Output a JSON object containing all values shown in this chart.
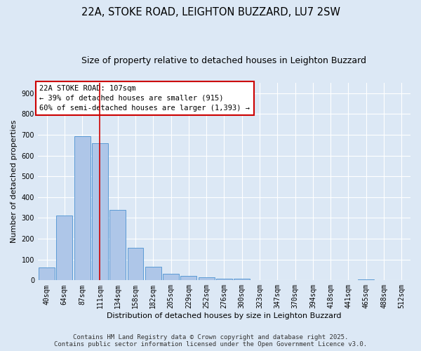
{
  "title": "22A, STOKE ROAD, LEIGHTON BUZZARD, LU7 2SW",
  "subtitle": "Size of property relative to detached houses in Leighton Buzzard",
  "xlabel": "Distribution of detached houses by size in Leighton Buzzard",
  "ylabel": "Number of detached properties",
  "categories": [
    "40sqm",
    "64sqm",
    "87sqm",
    "111sqm",
    "134sqm",
    "158sqm",
    "182sqm",
    "205sqm",
    "229sqm",
    "252sqm",
    "276sqm",
    "300sqm",
    "323sqm",
    "347sqm",
    "370sqm",
    "394sqm",
    "418sqm",
    "441sqm",
    "465sqm",
    "488sqm",
    "512sqm"
  ],
  "values": [
    63,
    313,
    693,
    658,
    337,
    155,
    65,
    33,
    20,
    13,
    8,
    8,
    0,
    0,
    0,
    0,
    0,
    0,
    5,
    0,
    0
  ],
  "bar_color": "#aec6e8",
  "bar_edge_color": "#5b9bd5",
  "background_color": "#dce8f5",
  "vline_x_index": 3,
  "vline_color": "#cc0000",
  "annotation_line1": "22A STOKE ROAD: 107sqm",
  "annotation_line2": "← 39% of detached houses are smaller (915)",
  "annotation_line3": "60% of semi-detached houses are larger (1,393) →",
  "annotation_box_color": "#ffffff",
  "annotation_box_edge_color": "#cc0000",
  "ylim": [
    0,
    950
  ],
  "yticks": [
    0,
    100,
    200,
    300,
    400,
    500,
    600,
    700,
    800,
    900
  ],
  "footer": "Contains HM Land Registry data © Crown copyright and database right 2025.\nContains public sector information licensed under the Open Government Licence v3.0.",
  "title_fontsize": 10.5,
  "subtitle_fontsize": 9,
  "axis_label_fontsize": 8,
  "tick_fontsize": 7,
  "annotation_fontsize": 7.5,
  "footer_fontsize": 6.5
}
